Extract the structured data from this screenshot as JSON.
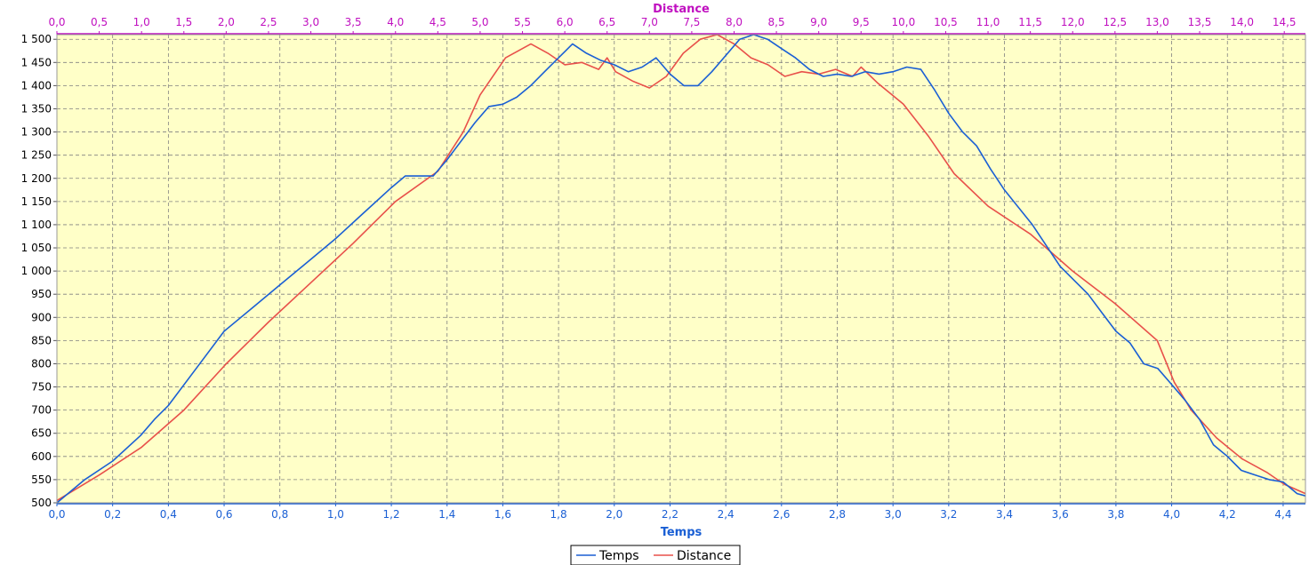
{
  "chart_data": {
    "type": "line",
    "xlabel_bottom": "Temps",
    "xlabel_top": "Distance",
    "ylabel": "",
    "ylim": [
      500,
      1510
    ],
    "xlim_bottom": [
      0.0,
      4.48
    ],
    "xlim_top": [
      0.0,
      14.75
    ],
    "grid": true,
    "legend_position": "bottom-center",
    "colors": {
      "plot_bg": "#ffffc8",
      "temps": "#1a5fd4",
      "distance": "#e8504a",
      "top_axis": "#c010c0",
      "bottom_axis": "#1a5fd4",
      "grid": "#808080"
    },
    "y_ticks": [
      "500",
      "550",
      "600",
      "650",
      "700",
      "750",
      "800",
      "850",
      "900",
      "950",
      "1 000",
      "1 050",
      "1 100",
      "1 150",
      "1 200",
      "1 250",
      "1 300",
      "1 350",
      "1 400",
      "1 450",
      "1 500"
    ],
    "x_bottom_ticks": [
      "0,0",
      "0,2",
      "0,4",
      "0,6",
      "0,8",
      "1,0",
      "1,2",
      "1,4",
      "1,6",
      "1,8",
      "2,0",
      "2,2",
      "2,4",
      "2,6",
      "2,8",
      "3,0",
      "3,2",
      "3,4",
      "3,6",
      "3,8",
      "4,0",
      "4,2",
      "4,4"
    ],
    "x_top_ticks": [
      "0,0",
      "0,5",
      "1,0",
      "1,5",
      "2,0",
      "2,5",
      "3,0",
      "3,5",
      "4,0",
      "4,5",
      "5,0",
      "5,5",
      "6,0",
      "6,5",
      "7,0",
      "7,5",
      "8,0",
      "8,5",
      "9,0",
      "9,5",
      "10,0",
      "10,5",
      "11,0",
      "11,5",
      "12,0",
      "12,5",
      "13,0",
      "13,5",
      "14,0",
      "14,5"
    ],
    "series": [
      {
        "name": "Temps",
        "axis": "bottom",
        "x": [
          0.0,
          0.1,
          0.2,
          0.3,
          0.35,
          0.4,
          0.5,
          0.6,
          0.7,
          0.8,
          0.9,
          1.0,
          1.1,
          1.2,
          1.25,
          1.35,
          1.4,
          1.5,
          1.55,
          1.6,
          1.65,
          1.7,
          1.75,
          1.8,
          1.85,
          1.9,
          1.95,
          2.0,
          2.05,
          2.1,
          2.15,
          2.2,
          2.25,
          2.3,
          2.35,
          2.4,
          2.45,
          2.5,
          2.55,
          2.6,
          2.65,
          2.7,
          2.75,
          2.8,
          2.85,
          2.9,
          2.95,
          3.0,
          3.05,
          3.1,
          3.15,
          3.2,
          3.25,
          3.3,
          3.35,
          3.4,
          3.5,
          3.6,
          3.7,
          3.75,
          3.8,
          3.85,
          3.9,
          3.95,
          4.0,
          4.05,
          4.1,
          4.15,
          4.2,
          4.25,
          4.3,
          4.35,
          4.4,
          4.45,
          4.48
        ],
        "y": [
          500,
          550,
          590,
          645,
          680,
          710,
          790,
          870,
          920,
          970,
          1020,
          1070,
          1125,
          1180,
          1205,
          1205,
          1240,
          1320,
          1355,
          1360,
          1375,
          1400,
          1430,
          1460,
          1490,
          1470,
          1455,
          1445,
          1430,
          1440,
          1460,
          1425,
          1400,
          1400,
          1430,
          1465,
          1500,
          1510,
          1500,
          1480,
          1460,
          1435,
          1420,
          1425,
          1420,
          1430,
          1425,
          1430,
          1440,
          1435,
          1390,
          1340,
          1300,
          1270,
          1220,
          1175,
          1100,
          1010,
          950,
          910,
          870,
          845,
          800,
          790,
          755,
          720,
          680,
          625,
          600,
          570,
          560,
          550,
          545,
          520,
          515
        ]
      },
      {
        "name": "Distance",
        "axis": "top",
        "x": [
          0.0,
          0.5,
          1.0,
          1.5,
          2.0,
          2.5,
          3.0,
          3.5,
          4.0,
          4.5,
          4.8,
          5.0,
          5.3,
          5.6,
          5.8,
          6.0,
          6.2,
          6.4,
          6.5,
          6.6,
          6.8,
          7.0,
          7.2,
          7.4,
          7.6,
          7.8,
          8.0,
          8.2,
          8.4,
          8.6,
          8.8,
          9.0,
          9.2,
          9.4,
          9.5,
          9.7,
          10.0,
          10.3,
          10.6,
          11.0,
          11.5,
          12.0,
          12.5,
          13.0,
          13.2,
          13.4,
          13.7,
          14.0,
          14.3,
          14.5,
          14.75
        ],
        "y": [
          505,
          560,
          620,
          700,
          800,
          890,
          975,
          1060,
          1150,
          1215,
          1300,
          1380,
          1460,
          1490,
          1470,
          1445,
          1450,
          1435,
          1460,
          1430,
          1410,
          1395,
          1420,
          1470,
          1500,
          1510,
          1490,
          1460,
          1445,
          1420,
          1430,
          1425,
          1435,
          1420,
          1440,
          1405,
          1360,
          1290,
          1210,
          1140,
          1080,
          1000,
          930,
          850,
          760,
          700,
          640,
          595,
          565,
          540,
          520
        ]
      }
    ]
  }
}
